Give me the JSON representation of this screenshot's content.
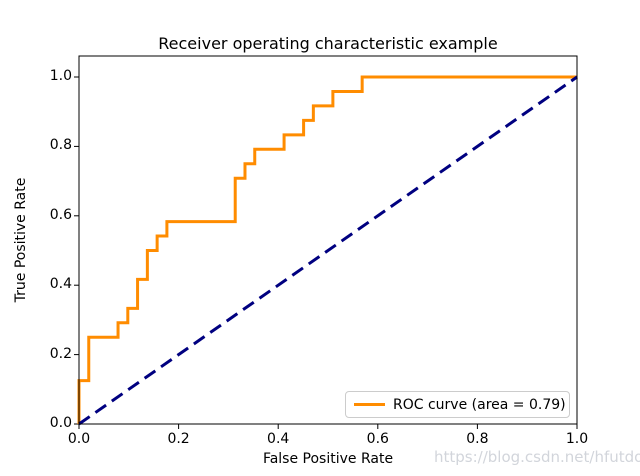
{
  "figure": {
    "title": "Receiver operating characteristic example",
    "xlabel": "False Positive Rate",
    "ylabel": "True Positive Rate",
    "watermark": "https://blog.csdn.net/hfutdog"
  },
  "legend": {
    "roc_label": "ROC curve (area = 0.79)"
  },
  "colors": {
    "roc_curve": "#ff8c00",
    "diagonal": "#000080",
    "axis": "#000000",
    "legend_border": "#cccccc",
    "watermark": "#d2d5db"
  },
  "chart_data": {
    "type": "line",
    "subtype": "roc-step-curve",
    "title": "Receiver operating characteristic example",
    "xlabel": "False Positive Rate",
    "ylabel": "True Positive Rate",
    "xlim": [
      0.0,
      1.0
    ],
    "ylim": [
      0.0,
      1.05
    ],
    "grid": false,
    "legend_position": "lower right",
    "x_ticks": [
      {
        "value": 0.0,
        "label": "0.0"
      },
      {
        "value": 0.2,
        "label": "0.2"
      },
      {
        "value": 0.4,
        "label": "0.4"
      },
      {
        "value": 0.6,
        "label": "0.6"
      },
      {
        "value": 0.8,
        "label": "0.8"
      },
      {
        "value": 1.0,
        "label": "1.0"
      }
    ],
    "y_ticks": [
      {
        "value": 0.0,
        "label": "0.0"
      },
      {
        "value": 0.2,
        "label": "0.2"
      },
      {
        "value": 0.4,
        "label": "0.4"
      },
      {
        "value": 0.6,
        "label": "0.6"
      },
      {
        "value": 0.8,
        "label": "0.8"
      },
      {
        "value": 1.0,
        "label": "1.0"
      }
    ],
    "series": [
      {
        "name": "ROC curve (area = 0.79)",
        "color": "#ff8c00",
        "style": "solid-step",
        "line_width": 3,
        "x": [
          0.0,
          0.0,
          0.0196,
          0.0196,
          0.0784,
          0.0784,
          0.098,
          0.098,
          0.1176,
          0.1176,
          0.1373,
          0.1373,
          0.1569,
          0.1569,
          0.1765,
          0.1765,
          0.3137,
          0.3137,
          0.3333,
          0.3333,
          0.3529,
          0.3529,
          0.4118,
          0.4118,
          0.451,
          0.451,
          0.4706,
          0.4706,
          0.5098,
          0.5098,
          0.5686,
          0.5686,
          1.0
        ],
        "y": [
          0.0,
          0.125,
          0.125,
          0.25,
          0.25,
          0.2917,
          0.2917,
          0.3333,
          0.3333,
          0.4167,
          0.4167,
          0.5,
          0.5,
          0.5417,
          0.5417,
          0.5833,
          0.5833,
          0.7083,
          0.7083,
          0.75,
          0.75,
          0.7917,
          0.7917,
          0.8333,
          0.8333,
          0.875,
          0.875,
          0.9167,
          0.9167,
          0.9583,
          0.9583,
          1.0,
          1.0
        ],
        "auc": 0.79
      },
      {
        "name": "chance-diagonal",
        "color": "#000080",
        "style": "dashed",
        "line_width": 3,
        "x": [
          0.0,
          1.0
        ],
        "y": [
          0.0,
          1.0
        ]
      }
    ]
  }
}
